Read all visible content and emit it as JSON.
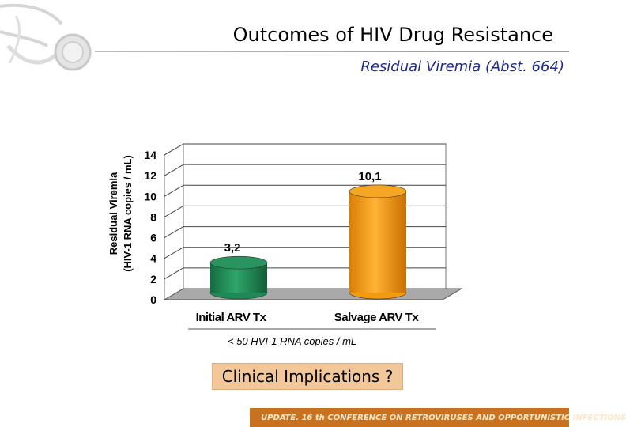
{
  "slide": {
    "title": "Outcomes of HIV Drug Resistance",
    "subtitle": "Residual Viremia (Abst. 664)",
    "caption": "< 50 HVI-1 RNA copies / mL",
    "implications_label": "Clinical Implications ?",
    "footer": "UPDATE. 16 th CONFERENCE ON RETROVIRUSES AND OPPORTUNISTIC INFECTIONS"
  },
  "logo": {
    "icon": "stethoscope-icon"
  },
  "chart_data": {
    "type": "bar",
    "categories": [
      "Initial ARV Tx",
      "Salvage ARV Tx"
    ],
    "values": [
      3.2,
      10.1
    ],
    "data_labels": [
      "3,2",
      "10,1"
    ],
    "colors": [
      "#1f8a55",
      "#f29a12"
    ],
    "ylabel_line1": "Residual Viremia",
    "ylabel_line2": "(HIV-1 RNA copies / mL)",
    "xlabel": "",
    "ylim": [
      0,
      14
    ],
    "yticks": [
      "0",
      "2",
      "4",
      "6",
      "8",
      "10",
      "12",
      "14"
    ],
    "grid": true,
    "style": "3d-cylinder"
  }
}
